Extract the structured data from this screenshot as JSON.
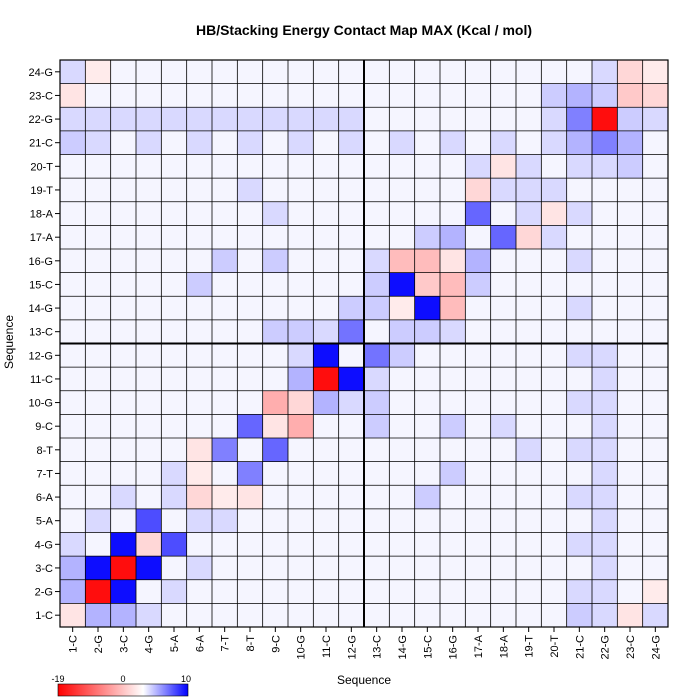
{
  "chart_data": {
    "type": "heatmap",
    "title": "HB/Stacking Energy Contact Map MAX (Kcal / mol)",
    "xlabel": "Sequence",
    "ylabel": "Sequence",
    "labels": [
      "1-C",
      "2-G",
      "3-C",
      "4-G",
      "5-A",
      "6-A",
      "7-T",
      "8-T",
      "9-C",
      "10-G",
      "11-C",
      "12-G",
      "13-C",
      "14-G",
      "15-C",
      "16-G",
      "17-A",
      "18-A",
      "19-T",
      "20-T",
      "21-C",
      "22-G",
      "23-C",
      "24-G"
    ],
    "colorbar": {
      "min": -19,
      "mid": 0,
      "max": 10,
      "min_label": "-19",
      "mid_label": "0",
      "max_label": "10",
      "low_color": "#ff0000",
      "mid_color": "#ffffff",
      "high_color": "#0000ff"
    },
    "divider_after_index": 11,
    "grid": true,
    "default_value": 0.4,
    "cells": [
      [
        1,
        2,
        9.5
      ],
      [
        2,
        3,
        9.5
      ],
      [
        10,
        11,
        9.5
      ],
      [
        13,
        14,
        9.5
      ],
      [
        20,
        21,
        9.5
      ],
      [
        22,
        23,
        9.5
      ],
      [
        1,
        1,
        -18
      ],
      [
        2,
        2,
        -18
      ],
      [
        10,
        10,
        -18
      ],
      [
        13,
        13,
        -18
      ],
      [
        21,
        21,
        -18
      ],
      [
        22,
        22,
        -18
      ],
      [
        3,
        4,
        7
      ],
      [
        4,
        5,
        1.5
      ],
      [
        6,
        7,
        5
      ],
      [
        7,
        8,
        6
      ],
      [
        8,
        9,
        -6
      ],
      [
        9,
        10,
        5
      ],
      [
        11,
        12,
        5.5
      ],
      [
        14,
        15,
        -5
      ],
      [
        15,
        16,
        -3
      ],
      [
        16,
        17,
        6
      ],
      [
        18,
        19,
        5
      ],
      [
        19,
        20,
        6
      ],
      [
        3,
        3,
        -3
      ],
      [
        5,
        5,
        -3
      ],
      [
        2,
        5,
        -2
      ],
      [
        12,
        9,
        6
      ],
      [
        12,
        13,
        5
      ],
      [
        15,
        13,
        -5
      ],
      [
        18,
        16,
        -3
      ],
      [
        18,
        17,
        -3
      ],
      [
        19,
        17,
        -2
      ],
      [
        20,
        21,
        5
      ],
      [
        21,
        21,
        -18
      ],
      [
        21,
        22,
        5
      ],
      [
        22,
        22,
        -4
      ],
      [
        23,
        22,
        -3
      ],
      [
        23,
        23,
        -2
      ],
      [
        21,
        20,
        5
      ],
      [
        22,
        20,
        3
      ],
      [
        0,
        0,
        -2
      ],
      [
        0,
        1,
        -2
      ],
      [
        0,
        2,
        2
      ],
      [
        1,
        0,
        3
      ],
      [
        2,
        0,
        3
      ],
      [
        20,
        20,
        3
      ],
      [
        22,
        19,
        2
      ],
      [
        0,
        20,
        2
      ],
      [
        0,
        22,
        -2
      ],
      [
        22,
        21,
        2
      ],
      [
        8,
        8,
        -2
      ],
      [
        9,
        9,
        -3
      ],
      [
        10,
        9,
        3
      ],
      [
        11,
        9,
        1.5
      ],
      [
        12,
        8,
        2
      ],
      [
        12,
        13,
        4
      ],
      [
        13,
        13,
        -1.5
      ],
      [
        14,
        14,
        -4
      ],
      [
        15,
        15,
        -2
      ],
      [
        15,
        16,
        3
      ],
      [
        16,
        15,
        3
      ],
      [
        14,
        16,
        2
      ],
      [
        15,
        8,
        2
      ],
      [
        17,
        8,
        1.5
      ],
      [
        18,
        7,
        1.5
      ],
      [
        5,
        14,
        2
      ],
      [
        6,
        15,
        2
      ],
      [
        9,
        12,
        2
      ],
      [
        10,
        12,
        1.5
      ],
      [
        11,
        13,
        2
      ],
      [
        12,
        14,
        1.5
      ],
      [
        13,
        12,
        2
      ],
      [
        14,
        12,
        2
      ],
      [
        15,
        12,
        1.5
      ],
      [
        1,
        20,
        1.5
      ],
      [
        1,
        21,
        1.5
      ],
      [
        2,
        21,
        1.5
      ],
      [
        3,
        21,
        1.5
      ],
      [
        4,
        21,
        1.5
      ],
      [
        5,
        21,
        1.5
      ],
      [
        6,
        21,
        1.5
      ],
      [
        7,
        21,
        1.5
      ],
      [
        8,
        21,
        1.5
      ],
      [
        9,
        21,
        1.5
      ],
      [
        10,
        21,
        1.5
      ],
      [
        11,
        21,
        1.5
      ],
      [
        20,
        1,
        1.5
      ],
      [
        20,
        3,
        1.5
      ],
      [
        20,
        5,
        1.5
      ],
      [
        20,
        7,
        1.5
      ],
      [
        20,
        9,
        1.5
      ],
      [
        20,
        11,
        1.5
      ],
      [
        20,
        13,
        1.5
      ],
      [
        20,
        15,
        1.5
      ],
      [
        20,
        17,
        1.5
      ],
      [
        20,
        19,
        1.5
      ],
      [
        3,
        0,
        1.5
      ],
      [
        4,
        1,
        1.5
      ],
      [
        5,
        2,
        -2
      ],
      [
        6,
        4,
        -2
      ],
      [
        7,
        5,
        -2
      ],
      [
        0,
        3,
        1.5
      ],
      [
        1,
        4,
        1.5
      ],
      [
        2,
        5,
        1.5
      ],
      [
        4,
        6,
        1.5
      ],
      [
        5,
        6,
        -1.5
      ],
      [
        17,
        18,
        1.5
      ],
      [
        18,
        18,
        1.5
      ],
      [
        19,
        18,
        1.5
      ],
      [
        16,
        19,
        1.5
      ],
      [
        19,
        21,
        1.5
      ],
      [
        21,
        23,
        1.5
      ],
      [
        23,
        23,
        -1.5
      ],
      [
        1,
        23,
        -2
      ],
      [
        0,
        21,
        1.5
      ],
      [
        23,
        0,
        1.5
      ],
      [
        23,
        1,
        -1.5
      ]
    ]
  }
}
